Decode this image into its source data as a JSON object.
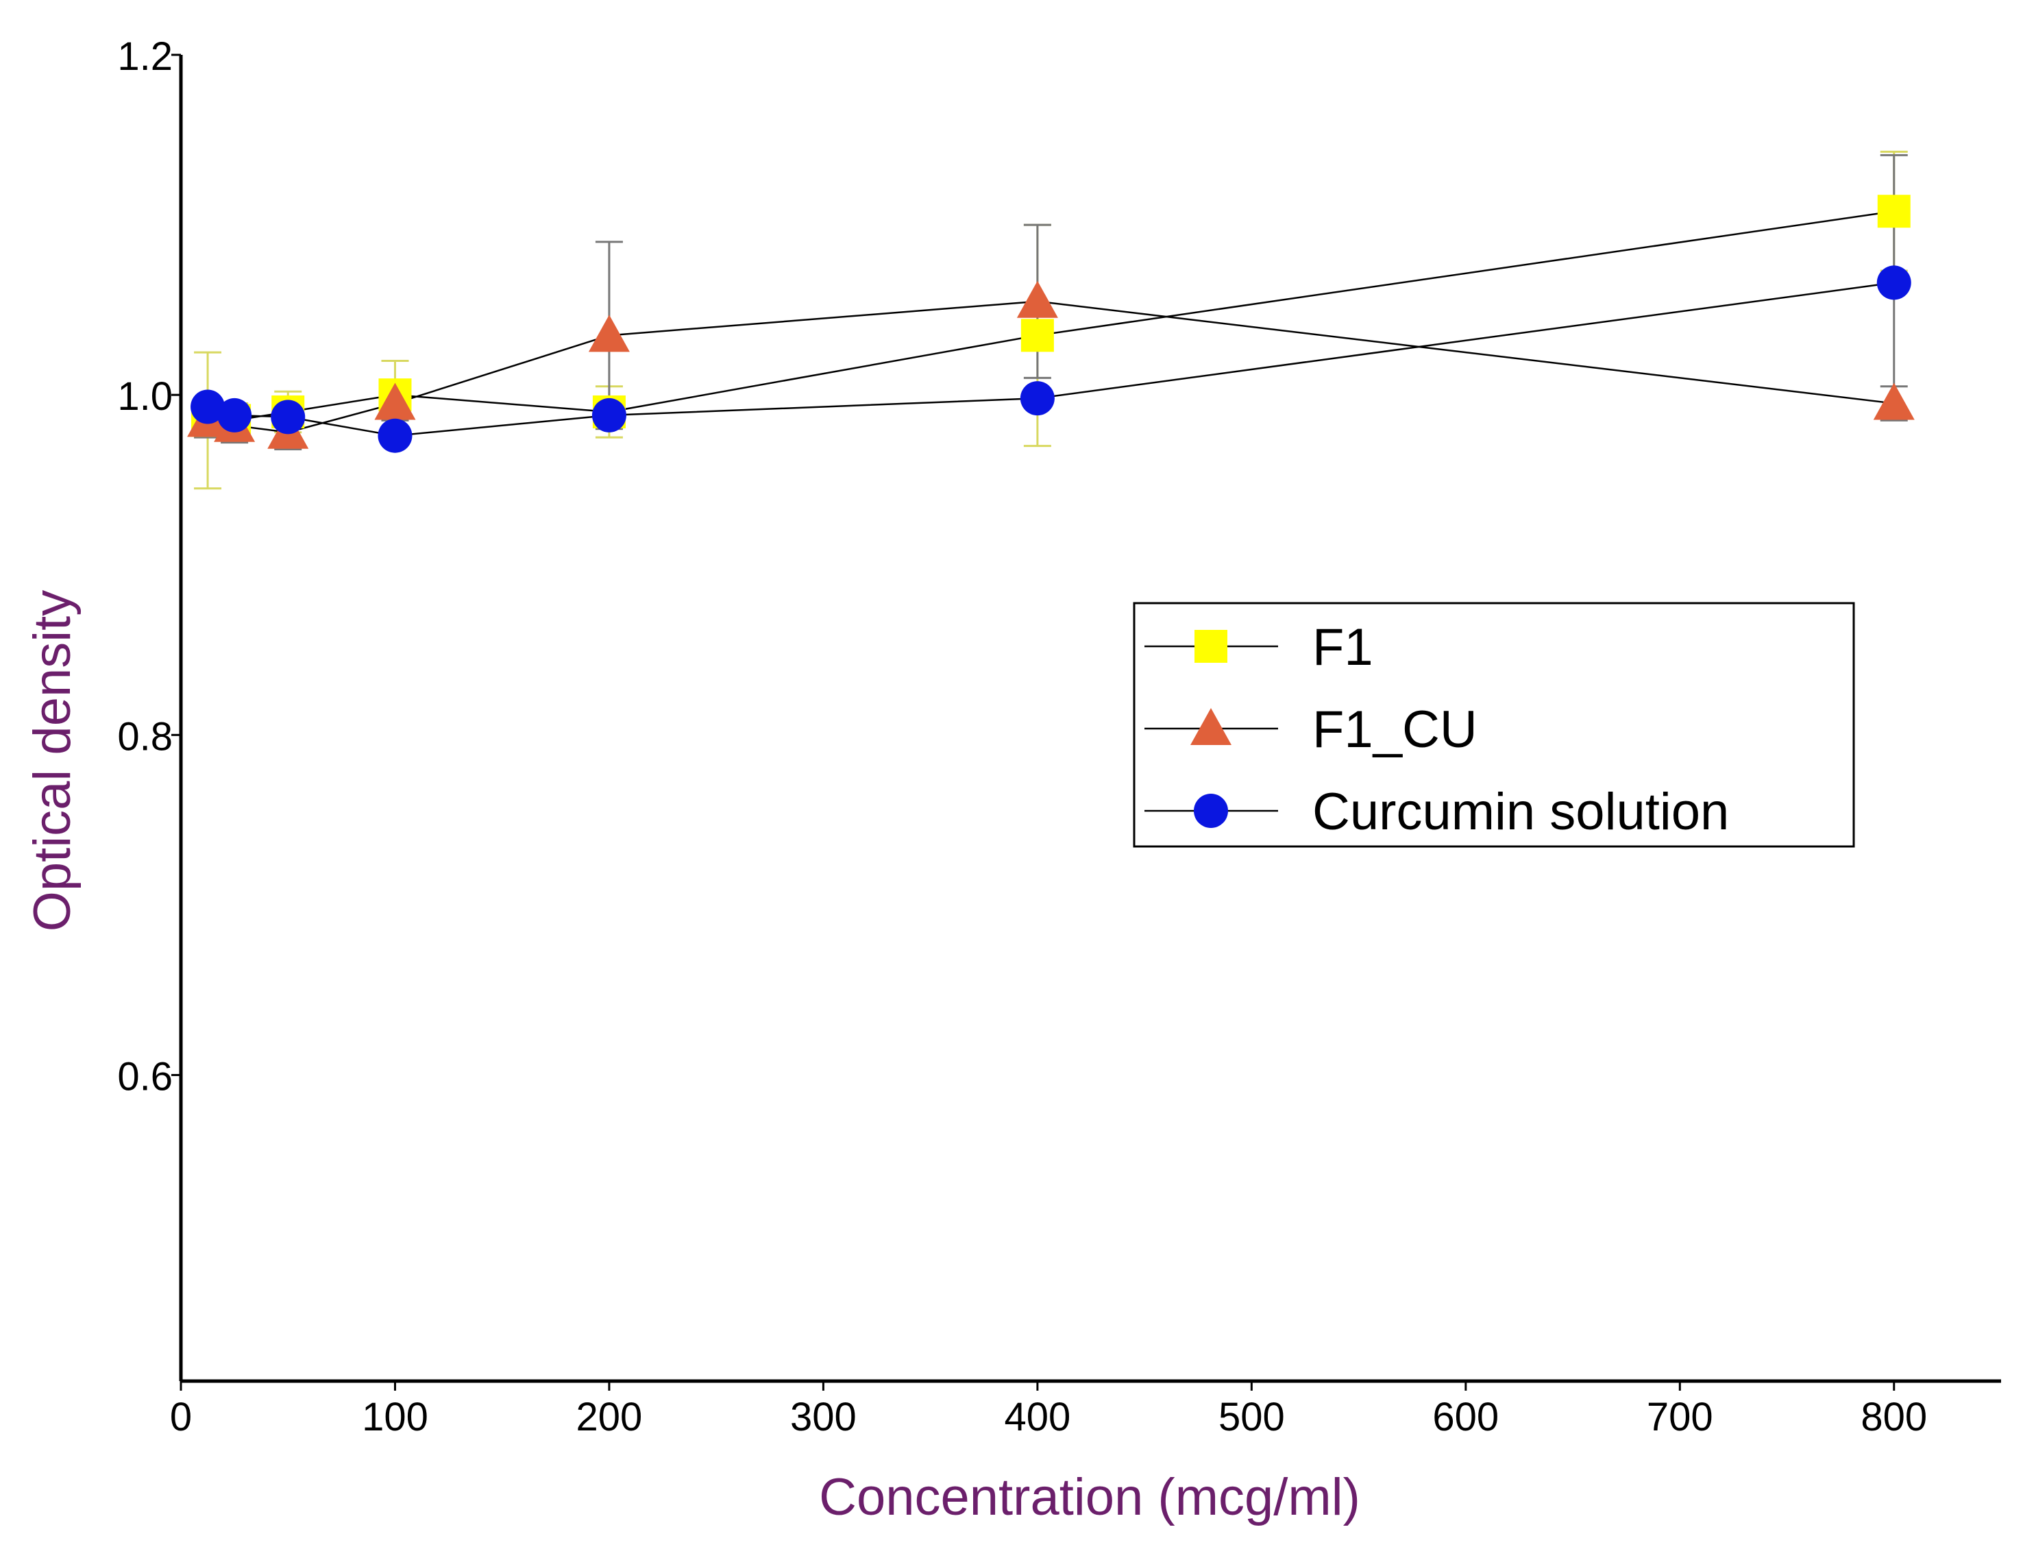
{
  "chart_data": {
    "type": "line",
    "title": "",
    "xlabel": "Concentration (mcg/ml)",
    "ylabel": "Optical density",
    "xlim": [
      0,
      850
    ],
    "ylim": [
      0.42,
      1.2
    ],
    "xticks": [
      0,
      100,
      200,
      300,
      400,
      500,
      600,
      700,
      800
    ],
    "yticks": [
      0.6,
      0.8,
      1.0,
      1.2
    ],
    "ytick_labels": [
      "0.6",
      "0.8",
      "1.0",
      "1.2"
    ],
    "xtick_labels": [
      "0",
      "100",
      "200",
      "300",
      "400",
      "500",
      "600",
      "700",
      "800"
    ],
    "legend_position": "center-right",
    "series": [
      {
        "name": "F1",
        "marker": "square",
        "color": "#ffff00",
        "x": [
          12.5,
          25,
          50,
          100,
          200,
          400,
          800
        ],
        "y": [
          0.985,
          0.985,
          0.99,
          1.0,
          0.99,
          1.035,
          1.108
        ],
        "err": [
          0.04,
          0.01,
          0.012,
          0.02,
          0.015,
          0.065,
          0.035
        ]
      },
      {
        "name": "F1_CU",
        "marker": "triangle",
        "color": "#e0603a",
        "x": [
          12.5,
          25,
          50,
          100,
          200,
          400,
          800
        ],
        "y": [
          0.985,
          0.982,
          0.978,
          0.995,
          1.035,
          1.055,
          0.995
        ],
        "err": [
          0.01,
          0.01,
          0.01,
          0.01,
          0.055,
          0.045,
          0.01
        ]
      },
      {
        "name": "Curcumin solution",
        "marker": "circle",
        "color": "#0a16e0",
        "x": [
          12.5,
          25,
          50,
          100,
          200,
          400,
          800
        ],
        "y": [
          0.993,
          0.988,
          0.987,
          0.976,
          0.988,
          0.998,
          1.066
        ],
        "err": [
          0.005,
          0.005,
          0.005,
          0.005,
          0.005,
          0.005,
          0.075
        ]
      }
    ]
  }
}
